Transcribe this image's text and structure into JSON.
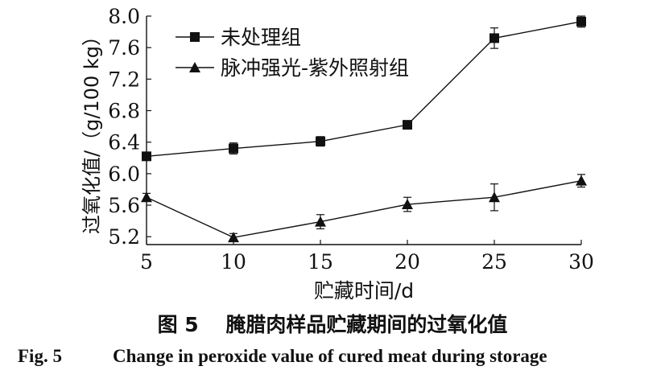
{
  "chart_data": {
    "type": "line",
    "x": [
      5,
      10,
      15,
      20,
      25,
      30
    ],
    "xlabel": "贮藏时间/d",
    "ylabel": "过氧化值/（g/100 kg）",
    "xlim": [
      5,
      30
    ],
    "ylim": [
      5.1,
      8.0
    ],
    "xticks": [
      "5",
      "10",
      "15",
      "20",
      "25",
      "30"
    ],
    "yticks": [
      "5.2",
      "5.6",
      "6.0",
      "6.4",
      "6.8",
      "7.2",
      "7.6",
      "8.0"
    ],
    "grid": false,
    "legend_position": "top-left",
    "series": [
      {
        "name": "未处理组",
        "marker": "square",
        "values": [
          6.22,
          6.32,
          6.41,
          6.62,
          7.72,
          7.93
        ],
        "errors": [
          0.05,
          0.07,
          0.06,
          0.05,
          0.13,
          0.07
        ]
      },
      {
        "name": "脉冲强光-紫外照射组",
        "marker": "triangle",
        "values": [
          5.7,
          5.19,
          5.39,
          5.61,
          5.7,
          5.91
        ],
        "errors": [
          0.05,
          0.05,
          0.09,
          0.09,
          0.17,
          0.08
        ]
      }
    ]
  },
  "caption": {
    "cn": "图 5　 腌腊肉样品贮藏期间的过氧化值",
    "en_fig": "Fig. 5",
    "en_text": "Change in peroxide value of cured meat during storage"
  }
}
